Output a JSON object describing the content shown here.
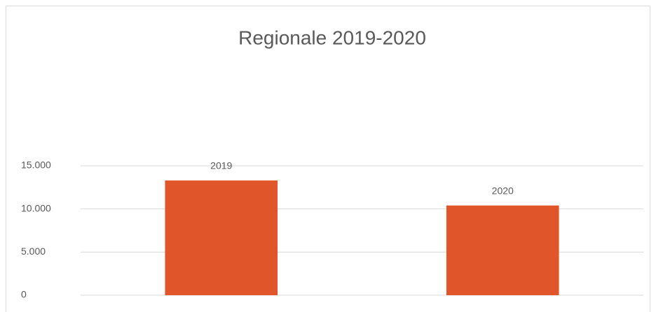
{
  "chart_data": {
    "type": "bar",
    "title": "Regionale 2019-2020",
    "categories": [
      "2019",
      "2020"
    ],
    "values": [
      13300,
      10400
    ],
    "color": "#e0562a",
    "ylim": [
      0,
      15000
    ],
    "yticks": [
      0,
      {
        "value": 5000,
        "label": "5.000"
      },
      {
        "value": 10000,
        "label": "10.000"
      },
      {
        "value": 15000,
        "label": "15.000"
      }
    ],
    "grid": true
  }
}
